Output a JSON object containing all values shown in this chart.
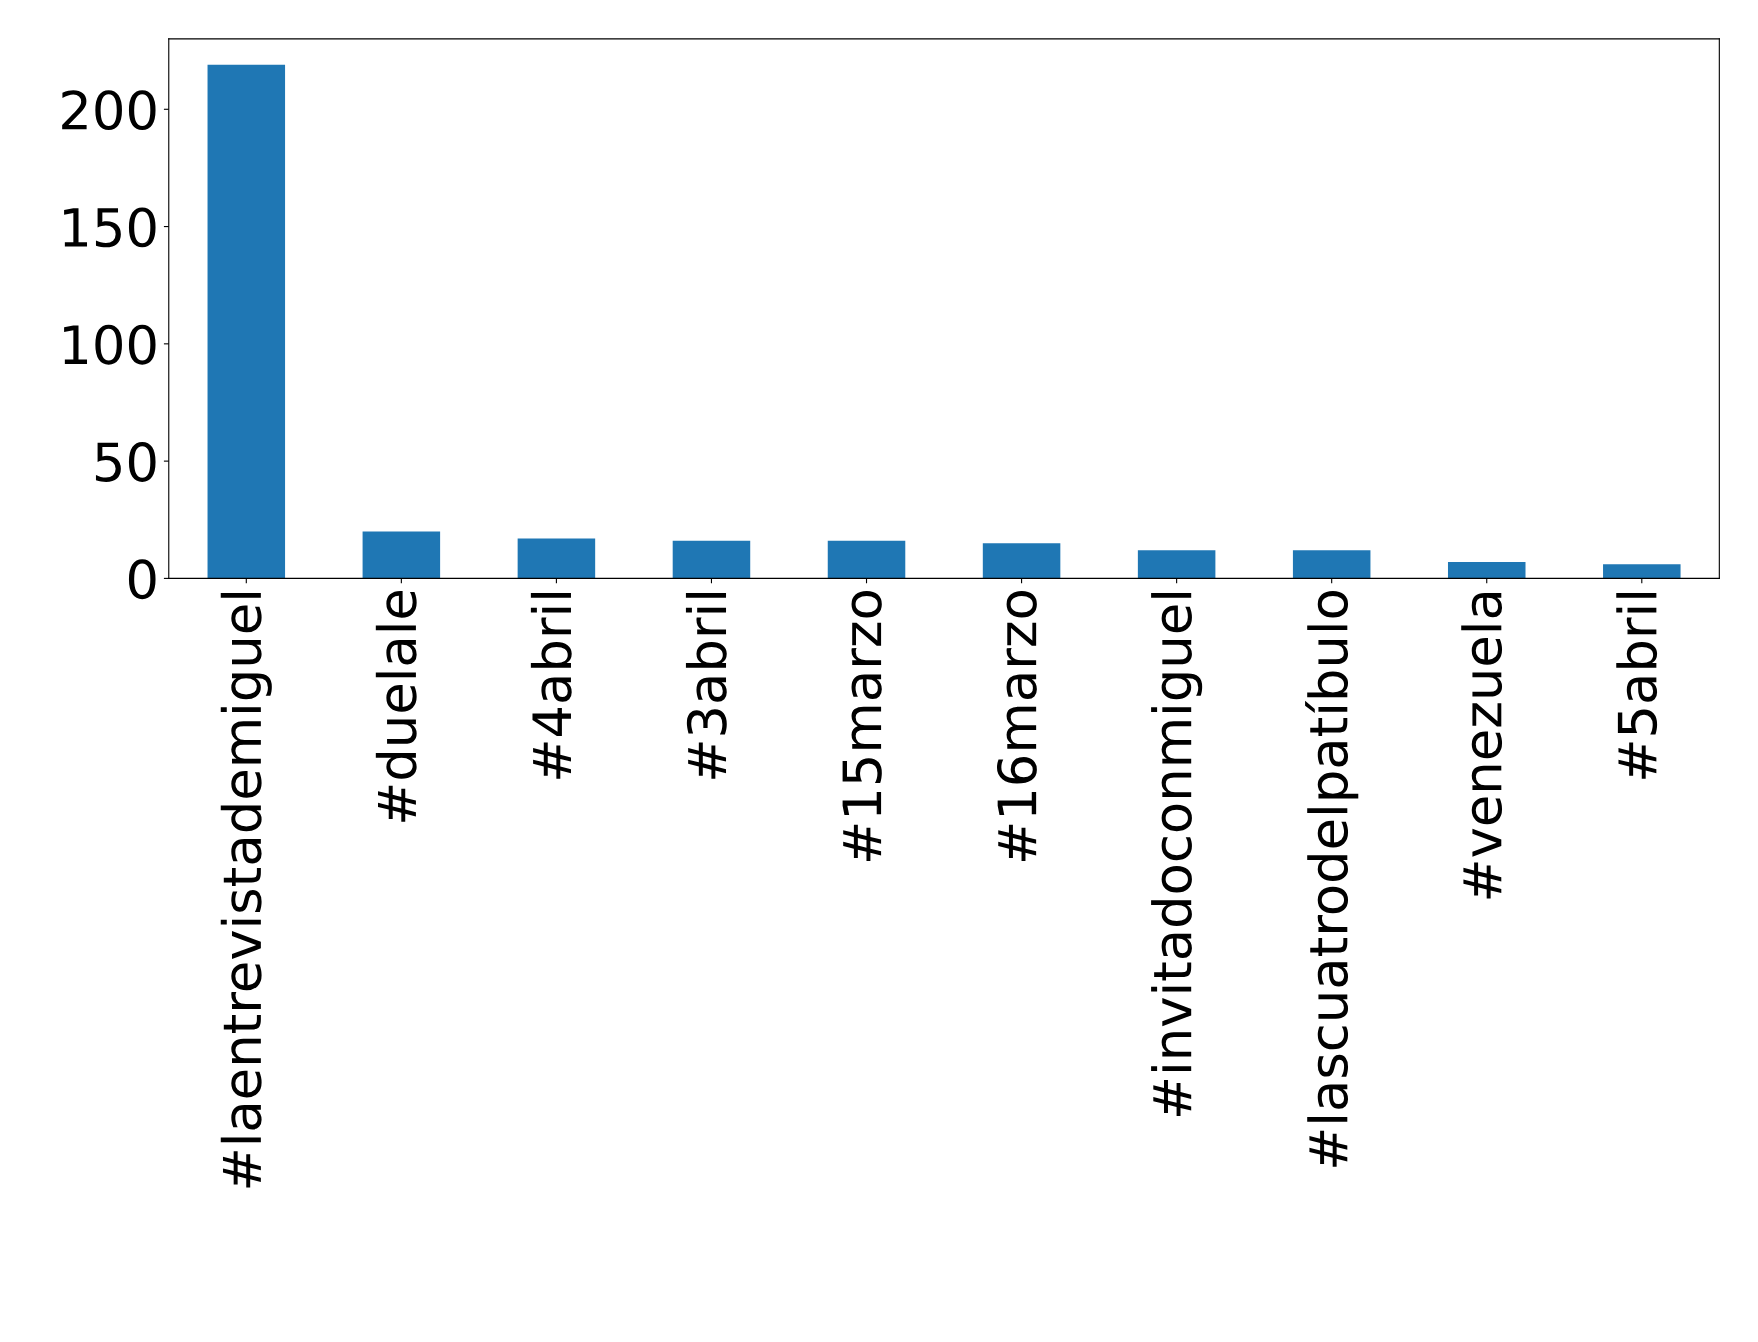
{
  "chart_data": {
    "type": "bar",
    "categories": [
      "#laentrevistademiguel",
      "#duelale",
      "#4abril",
      "#3abril",
      "#15marzo",
      "#16marzo",
      "#invitadoconmiguel",
      "#lascuatrodelpatíbulo",
      "#venezuela",
      "#5abril"
    ],
    "values": [
      219,
      20,
      17,
      16,
      16,
      15,
      12,
      12,
      7,
      6
    ],
    "color": "#1f77b4",
    "ylim": [
      0,
      230
    ],
    "yticks": [
      0,
      50,
      100,
      150,
      200
    ],
    "grid": false,
    "legend": false
  }
}
